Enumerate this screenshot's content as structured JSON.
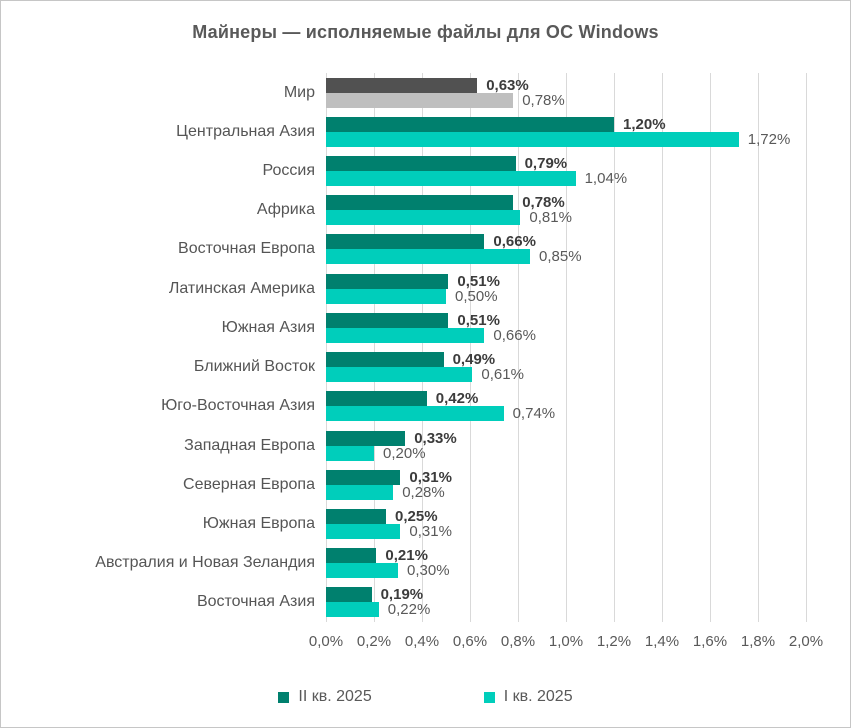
{
  "chart_data": {
    "type": "bar",
    "orientation": "horizontal",
    "title": "Майнеры — исполняемые файлы для ОС Windows",
    "xlim": [
      0,
      2.0
    ],
    "x_ticks": [
      "0,0%",
      "0,2%",
      "0,4%",
      "0,6%",
      "0,8%",
      "1,0%",
      "1,2%",
      "1,4%",
      "1,6%",
      "1,8%",
      "2,0%"
    ],
    "grid": "vertical",
    "legend_position": "bottom",
    "categories": [
      "Мир",
      "Центральная Азия",
      "Россия",
      "Африка",
      "Восточная Европа",
      "Латинская Америка",
      "Южная Азия",
      "Ближний Восток",
      "Юго-Восточная Азия",
      "Западная Европа",
      "Северная Европа",
      "Южная Европа",
      "Австралия и Новая Зеландия",
      "Восточная Азия"
    ],
    "series": [
      {
        "name": "II кв. 2025",
        "color": "#00806E",
        "world_color": "#515151",
        "values": [
          0.63,
          1.2,
          0.79,
          0.78,
          0.66,
          0.51,
          0.51,
          0.49,
          0.42,
          0.33,
          0.31,
          0.25,
          0.21,
          0.19
        ],
        "labels": [
          "0,63%",
          "1,20%",
          "0,79%",
          "0,78%",
          "0,66%",
          "0,51%",
          "0,51%",
          "0,49%",
          "0,42%",
          "0,33%",
          "0,31%",
          "0,25%",
          "0,21%",
          "0,19%"
        ]
      },
      {
        "name": "I кв. 2025",
        "color": "#00CEBB",
        "world_color": "#BFBFBF",
        "values": [
          0.78,
          1.72,
          1.04,
          0.81,
          0.85,
          0.5,
          0.66,
          0.61,
          0.74,
          0.2,
          0.28,
          0.31,
          0.3,
          0.22
        ],
        "labels": [
          "0,78%",
          "1,72%",
          "1,04%",
          "0,81%",
          "0,85%",
          "0,50%",
          "0,66%",
          "0,61%",
          "0,74%",
          "0,20%",
          "0,28%",
          "0,31%",
          "0,30%",
          "0,22%"
        ]
      }
    ],
    "colors": {
      "grid": "#d9d9d9",
      "title_text": "#595959",
      "category_text": "#555555",
      "value_bold_text": "#3c3c3c",
      "value_regular_text": "#595959"
    }
  }
}
